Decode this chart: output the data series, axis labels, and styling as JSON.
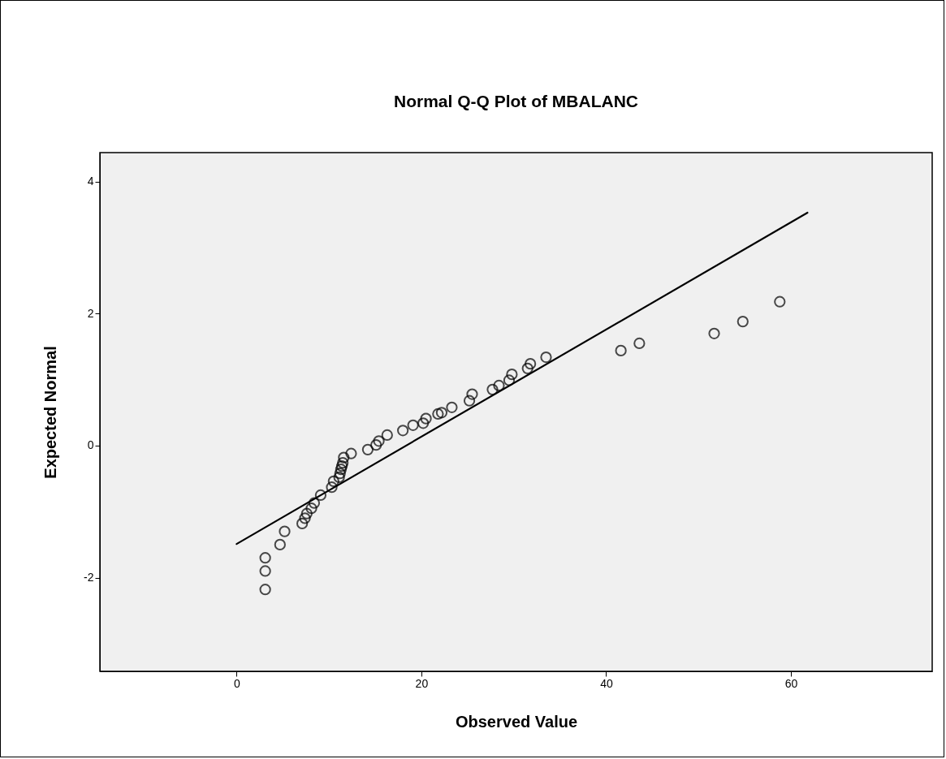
{
  "chart_data": {
    "type": "scatter",
    "title": "Normal Q-Q Plot of MBALANC",
    "xlabel": "Observed Value",
    "ylabel": "Expected Normal",
    "xlim": [
      -14.8,
      75.3
    ],
    "ylim": [
      -3.42,
      4.44
    ],
    "xticks": [
      0,
      20,
      40,
      60
    ],
    "yticks": [
      -2,
      0,
      2,
      4
    ],
    "series": [
      {
        "marker": "circle",
        "color": "#000000",
        "x": [
          3.1,
          3.1,
          3.1,
          4.7,
          5.2,
          7.1,
          7.4,
          7.6,
          8.1,
          8.4,
          9.1,
          10.3,
          10.5,
          11.1,
          11.2,
          11.3,
          11.4,
          11.5,
          11.6,
          12.4,
          14.2,
          15.1,
          15.4,
          16.3,
          18.0,
          19.1,
          20.2,
          20.5,
          21.8,
          22.2,
          23.3,
          25.2,
          25.5,
          27.7,
          28.4,
          29.5,
          29.8,
          31.5,
          31.8,
          33.5,
          41.6,
          43.6,
          51.7,
          54.8,
          58.8
        ],
        "values": [
          -2.18,
          -1.9,
          -1.7,
          -1.5,
          -1.3,
          -1.18,
          -1.1,
          -1.03,
          -0.95,
          -0.87,
          -0.75,
          -0.63,
          -0.54,
          -0.48,
          -0.42,
          -0.36,
          -0.31,
          -0.26,
          -0.18,
          -0.12,
          -0.06,
          0.01,
          0.07,
          0.16,
          0.23,
          0.31,
          0.34,
          0.41,
          0.48,
          0.5,
          0.58,
          0.68,
          0.78,
          0.85,
          0.91,
          0.99,
          1.08,
          1.17,
          1.24,
          1.34,
          1.44,
          1.55,
          1.7,
          1.88,
          2.18
        ]
      },
      {
        "type": "line",
        "color": "#000000",
        "x": [
          0,
          61.8
        ],
        "values": [
          -1.49,
          3.53
        ]
      }
    ]
  }
}
